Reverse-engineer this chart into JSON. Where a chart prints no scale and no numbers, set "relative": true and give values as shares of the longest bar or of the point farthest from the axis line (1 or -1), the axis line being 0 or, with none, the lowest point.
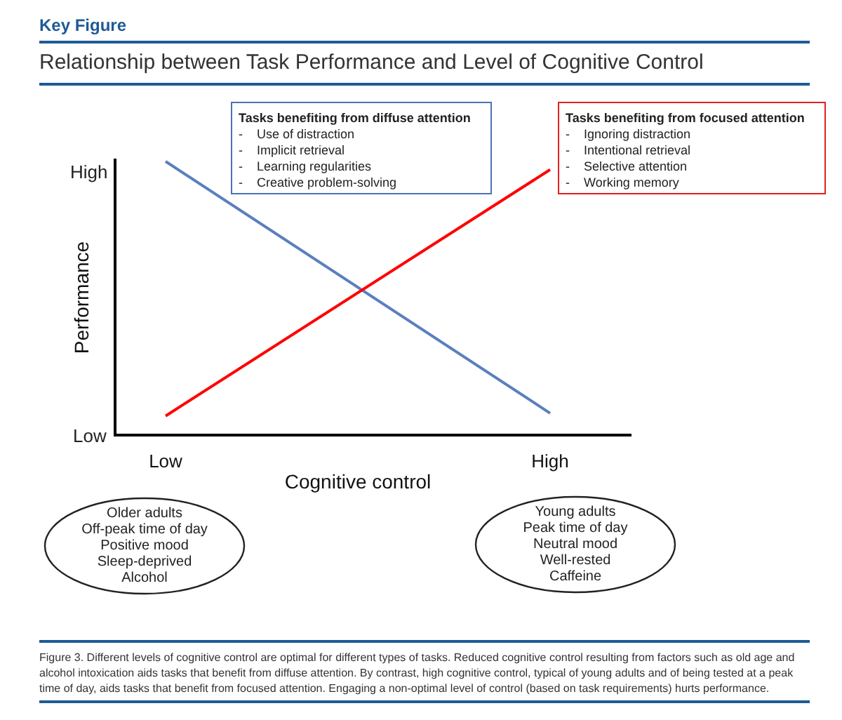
{
  "chart_data": {
    "type": "line",
    "relative": true,
    "title": "Relationship between Task Performance and Level of Cognitive Control",
    "xlabel": "Cognitive control",
    "ylabel": "Performance",
    "categories": [
      "Low",
      "High"
    ],
    "series": [
      {
        "color": "#5b7fbf",
        "values": [
          1,
          0.08
        ]
      },
      {
        "color": "#ff0000",
        "values": [
          0.07,
          0.97
        ]
      }
    ],
    "annotations": [
      "Key Figure",
      "Tasks benefiting from diffuse attention\n-    Use of distraction\n-    Implicit retrieval\n-    Learning regularities\n-    Creative problem-solving",
      "Tasks benefiting from focused attention\n-    Ignoring distraction\n-    Intentional retrieval\n-    Selective attention\n-    Working memory",
      "Older adults\nOff-peak time of day\nPositive mood\nSleep-deprived\nAlcohol",
      "Young adults\nPeak time of day\nNeutral mood\nWell-rested\nCaffeine",
      "Figure 3. Different levels of cognitive control are optimal for different types of tasks. Reduced cognitive control resulting from factors such as old age and alcohol intoxication aids tasks that benefit from diffuse attention. By contrast, high cognitive control, typical of young adults and of being tested at a peak time of day, aids tasks that benefit from focused attention. Engaging a non-optimal level of control (based on task requirements) hurts performance.",
      "High",
      "Low"
    ],
    "grid": false,
    "marker": "none",
    "line_style": "solid"
  }
}
